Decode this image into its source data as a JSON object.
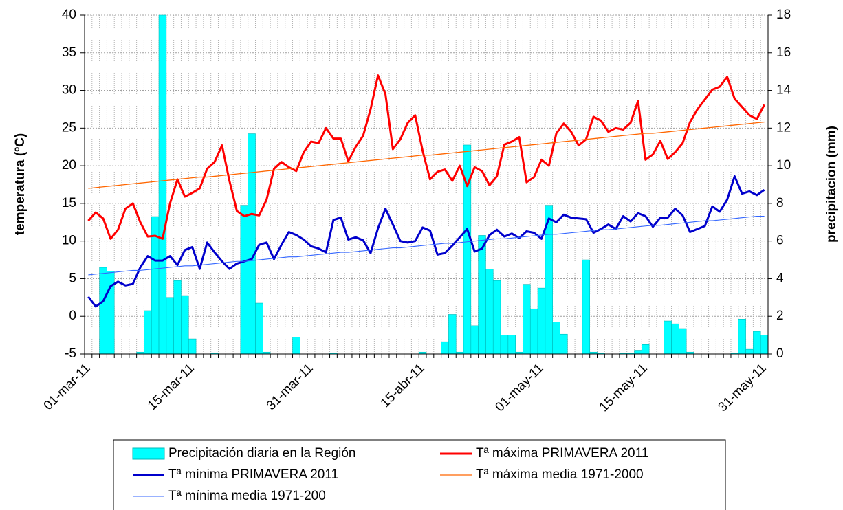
{
  "chart_data": {
    "type": "combo",
    "categories": [
      "01-mar-11",
      null,
      null,
      null,
      null,
      null,
      null,
      null,
      null,
      null,
      null,
      null,
      null,
      null,
      "15-mar-11",
      null,
      null,
      null,
      null,
      null,
      null,
      null,
      null,
      null,
      null,
      null,
      null,
      null,
      null,
      null,
      "31-mar-11",
      null,
      null,
      null,
      null,
      null,
      null,
      null,
      null,
      null,
      null,
      null,
      null,
      null,
      null,
      "15-abr-11",
      null,
      null,
      null,
      null,
      null,
      null,
      null,
      null,
      null,
      null,
      null,
      null,
      null,
      null,
      null,
      "01-may-11",
      null,
      null,
      null,
      null,
      null,
      null,
      null,
      null,
      null,
      null,
      null,
      null,
      null,
      "15-may-11",
      null,
      null,
      null,
      null,
      null,
      null,
      null,
      null,
      null,
      null,
      null,
      null,
      null,
      null,
      null,
      "31-may-11"
    ],
    "y_label": "temperatura (ºC)",
    "y2_label": "precipitacion (mm)",
    "ylim": [
      -5,
      40
    ],
    "yticks": [
      -5,
      0,
      5,
      10,
      15,
      20,
      25,
      30,
      35,
      40
    ],
    "y2lim": [
      0,
      18
    ],
    "y2ticks": [
      0,
      2,
      4,
      6,
      8,
      10,
      12,
      14,
      16,
      18
    ],
    "grid": true,
    "series": [
      {
        "name": "Precipitación diaria en la Región",
        "type": "bar",
        "axis": "y2",
        "color": "#00ffff",
        "values": [
          0,
          0,
          4.6,
          4.4,
          0,
          0,
          0,
          0.1,
          2.3,
          7.3,
          18,
          3.0,
          3.9,
          3.1,
          0.8,
          0,
          0,
          0.05,
          0,
          0,
          0,
          7.9,
          11.7,
          2.7,
          0.1,
          0,
          0,
          0,
          0.9,
          0,
          0,
          0,
          0,
          0.05,
          0,
          0,
          0,
          0,
          0,
          0,
          0,
          0,
          0,
          0,
          0,
          0.1,
          0,
          0,
          0.65,
          2.1,
          0.1,
          11.1,
          1.5,
          6.3,
          4.5,
          3.9,
          1.0,
          1.0,
          0.1,
          3.7,
          2.4,
          3.5,
          7.9,
          1.7,
          1.05,
          0,
          0,
          5.0,
          0.1,
          0.05,
          0,
          0,
          0.05,
          0.05,
          0.2,
          0.5,
          0,
          0,
          1.75,
          1.6,
          1.35,
          0.1,
          0,
          0,
          0,
          0,
          0,
          0.05,
          1.85,
          0.25,
          1.2,
          1.0
        ]
      },
      {
        "name": "Tª máxima PRIMAVERA 2011",
        "type": "line",
        "color": "#ff0000",
        "width": 3,
        "values": [
          12.7,
          13.8,
          13.0,
          10.3,
          11.5,
          14.3,
          15.0,
          12.5,
          10.6,
          10.7,
          10.3,
          15.0,
          18.2,
          15.9,
          16.4,
          17.0,
          19.6,
          20.5,
          22.7,
          18.0,
          14.0,
          13.3,
          13.6,
          13.4,
          15.5,
          19.6,
          20.5,
          19.8,
          19.3,
          21.8,
          23.2,
          23.0,
          25.0,
          23.6,
          23.6,
          20.6,
          22.5,
          24.0,
          27.5,
          32.0,
          29.5,
          22.2,
          23.5,
          25.7,
          26.7,
          22.0,
          18.2,
          19.2,
          19.5,
          18.0,
          20.0,
          17.3,
          19.8,
          19.3,
          17.4,
          18.6,
          22.8,
          23.2,
          23.8,
          17.8,
          18.5,
          20.8,
          20.0,
          24.3,
          25.6,
          24.5,
          22.7,
          23.5,
          26.5,
          26.0,
          24.5,
          25.0,
          24.8,
          25.7,
          28.6,
          20.8,
          21.5,
          23.3,
          20.9,
          21.8,
          23.0,
          25.8,
          27.5,
          28.8,
          30.1,
          30.5,
          31.8,
          28.9,
          27.8,
          26.7,
          26.2,
          28.1
        ]
      },
      {
        "name": "Tª mínima PRIMAVERA 2011",
        "type": "line",
        "color": "#0000cc",
        "width": 3,
        "values": [
          2.6,
          1.3,
          2.0,
          4.0,
          4.6,
          4.1,
          4.3,
          6.5,
          8.0,
          7.4,
          7.4,
          8.0,
          6.8,
          8.8,
          9.2,
          6.3,
          9.8,
          8.5,
          7.3,
          6.3,
          7.0,
          7.3,
          7.6,
          9.5,
          9.8,
          7.6,
          9.5,
          11.2,
          10.8,
          10.2,
          9.3,
          9.0,
          8.5,
          12.8,
          13.1,
          10.2,
          10.5,
          10.1,
          8.4,
          11.7,
          14.3,
          12.2,
          10.0,
          9.8,
          10.0,
          11.8,
          11.4,
          8.2,
          8.4,
          9.4,
          10.5,
          11.6,
          8.6,
          9.0,
          10.8,
          11.5,
          10.6,
          11.0,
          10.4,
          11.3,
          11.1,
          10.3,
          13.0,
          12.5,
          13.5,
          13.1,
          13.0,
          12.9,
          11.1,
          11.6,
          12.2,
          11.6,
          13.3,
          12.6,
          13.7,
          13.3,
          11.9,
          13.1,
          13.1,
          14.3,
          13.4,
          11.2,
          11.6,
          12.0,
          14.6,
          13.9,
          15.5,
          18.6,
          16.3,
          16.6,
          16.1,
          16.8
        ]
      },
      {
        "name": "Tª máxima media 1971-2000",
        "type": "line",
        "color": "#ff6600",
        "width": 1.3,
        "values": [
          17.0,
          17.1,
          17.2,
          17.3,
          17.4,
          17.5,
          17.6,
          17.7,
          17.8,
          17.9,
          18.0,
          18.1,
          18.2,
          18.3,
          18.4,
          18.5,
          18.5,
          18.6,
          18.7,
          18.8,
          18.9,
          19.0,
          19.1,
          19.2,
          19.3,
          19.4,
          19.5,
          19.6,
          19.7,
          19.8,
          19.9,
          20.0,
          20.1,
          20.2,
          20.3,
          20.4,
          20.5,
          20.6,
          20.7,
          20.8,
          20.9,
          21.0,
          21.1,
          21.2,
          21.3,
          21.4,
          21.4,
          21.5,
          21.6,
          21.7,
          21.8,
          21.9,
          22.0,
          22.1,
          22.2,
          22.3,
          22.4,
          22.5,
          22.6,
          22.7,
          22.8,
          22.9,
          23.0,
          23.1,
          23.2,
          23.3,
          23.4,
          23.5,
          23.6,
          23.7,
          23.8,
          23.9,
          24.0,
          24.1,
          24.2,
          24.3,
          24.3,
          24.4,
          24.5,
          24.6,
          24.7,
          24.8,
          24.9,
          25.0,
          25.1,
          25.2,
          25.3,
          25.4,
          25.5,
          25.6,
          25.7,
          25.8
        ]
      },
      {
        "name": "Tª mínima media 1971-200",
        "type": "line",
        "color": "#3366ff",
        "width": 1.1,
        "values": [
          5.5,
          5.6,
          5.7,
          5.8,
          5.9,
          6.0,
          6.1,
          6.1,
          6.2,
          6.3,
          6.4,
          6.5,
          6.6,
          6.7,
          6.7,
          6.8,
          6.9,
          7.0,
          7.1,
          7.2,
          7.3,
          7.3,
          7.4,
          7.5,
          7.6,
          7.7,
          7.8,
          7.9,
          7.9,
          8.0,
          8.1,
          8.2,
          8.3,
          8.4,
          8.5,
          8.5,
          8.6,
          8.7,
          8.8,
          8.9,
          9.0,
          9.1,
          9.1,
          9.2,
          9.3,
          9.4,
          9.5,
          9.6,
          9.7,
          9.7,
          9.8,
          9.9,
          10.0,
          10.1,
          10.2,
          10.3,
          10.3,
          10.4,
          10.5,
          10.6,
          10.7,
          10.8,
          10.9,
          10.9,
          11.0,
          11.1,
          11.2,
          11.3,
          11.4,
          11.5,
          11.5,
          11.6,
          11.7,
          11.8,
          11.9,
          12.0,
          12.1,
          12.1,
          12.2,
          12.3,
          12.4,
          12.5,
          12.6,
          12.7,
          12.7,
          12.8,
          12.9,
          13.0,
          13.1,
          13.2,
          13.3,
          13.3
        ]
      }
    ]
  }
}
